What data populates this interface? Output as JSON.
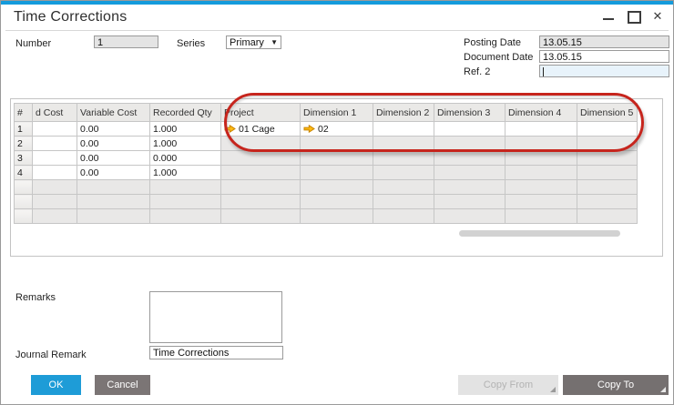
{
  "window": {
    "title": "Time Corrections"
  },
  "header_form": {
    "number_label": "Number",
    "number_value": "1",
    "series_label": "Series",
    "series_value": "Primary",
    "posting_date_label": "Posting Date",
    "posting_date_value": "13.05.15",
    "document_date_label": "Document Date",
    "document_date_value": "13.05.15",
    "ref2_label": "Ref. 2",
    "ref2_value": ""
  },
  "table": {
    "columns": [
      "#",
      "d Cost",
      "Variable Cost",
      "Recorded Qty",
      "Project",
      "Dimension 1",
      "Dimension 2",
      "Dimension 3",
      "Dimension 4",
      "Dimension 5"
    ],
    "rows": [
      {
        "cells": [
          "1",
          "",
          "0.00",
          "1.000",
          {
            "text": "01 Cage",
            "link_arrow": true
          },
          {
            "text": "02",
            "link_arrow": true
          },
          "",
          "",
          "",
          ""
        ]
      },
      {
        "cells": [
          "2",
          "",
          "0.00",
          "1.000",
          "",
          "",
          "",
          "",
          "",
          ""
        ]
      },
      {
        "cells": [
          "3",
          "",
          "0.00",
          "0.000",
          "",
          "",
          "",
          "",
          "",
          ""
        ]
      },
      {
        "cells": [
          "4",
          "",
          "0.00",
          "1.000",
          "",
          "",
          "",
          "",
          "",
          ""
        ]
      }
    ],
    "empty_rows": 3
  },
  "annotation": {
    "type": "red-ellipse-highlight"
  },
  "footer_form": {
    "remarks_label": "Remarks",
    "remarks_value": "",
    "journal_remark_label": "Journal Remark",
    "journal_remark_value": "Time Corrections"
  },
  "buttons": {
    "ok": "OK",
    "cancel": "Cancel",
    "copy_from": "Copy From",
    "copy_to": "Copy To"
  },
  "colors": {
    "accent_blue": "#149bdc",
    "ok_button": "#1e9cd7",
    "cancel_button": "#7b7575",
    "copy_to_button": "#757070",
    "annotation_red": "#c6251d",
    "link_arrow_orange": "#fdb913"
  }
}
